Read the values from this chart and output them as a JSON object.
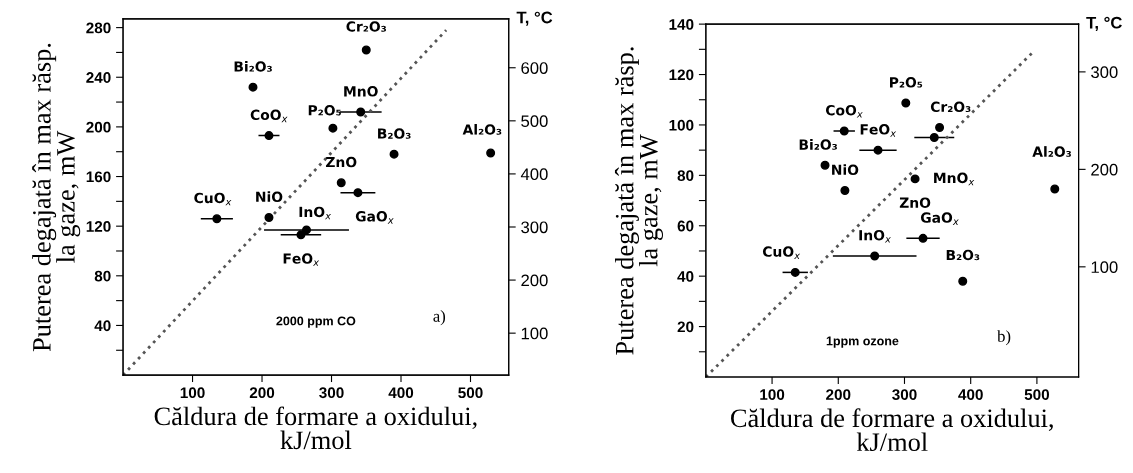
{
  "chart_data": [
    {
      "type": "scatter",
      "xlabel": "Căldura de formare a oxidului,\nkJ/mol",
      "ylabel": "Puterea degajată în max răsp.\nla gaze, mW",
      "y2label": "T, °C",
      "xlim": [
        0,
        555
      ],
      "xticks": [
        100,
        200,
        300,
        400,
        500
      ],
      "ylim": [
        0,
        287
      ],
      "yticks": [
        {
          "value": 20,
          "label": null
        },
        40,
        {
          "value": 60,
          "label": null
        },
        80,
        {
          "value": 100,
          "label": null
        },
        120,
        {
          "value": 140,
          "label": null
        },
        160,
        {
          "value": 180,
          "label": null
        },
        200,
        {
          "value": 220,
          "label": null
        },
        240,
        {
          "value": 260,
          "label": null
        },
        280
      ],
      "y2lim": [
        21,
        692
      ],
      "y2ticks": [
        100,
        200,
        300,
        400,
        500,
        600
      ],
      "grid": false,
      "legend": false,
      "series": [
        {
          "marker": "circle",
          "color": "#000000",
          "x": [
            187,
            210,
            135,
            210,
            350,
            342,
            302,
            390,
            529,
            314,
            338,
            264,
            256
          ],
          "values": [
            232,
            193,
            126,
            127,
            262,
            212,
            199,
            178,
            179,
            155,
            147,
            117,
            113
          ],
          "xerrors": [
            null,
            14,
            22,
            null,
            null,
            29,
            null,
            null,
            null,
            null,
            24,
            60,
            28
          ]
        },
        {
          "type": "line",
          "color": "#555555",
          "line_style": "dotted",
          "x": [
            0,
            465
          ],
          "values": [
            0,
            278
          ]
        }
      ],
      "annotations": [
        {
          "text": "Bi₂O₃",
          "x": 187,
          "y": 232
        },
        {
          "text": "CoO$_{x}$",
          "x": 210,
          "y": 193
        },
        {
          "text": "CuO$_{x}$",
          "x": 135,
          "y": 126
        },
        {
          "text": "NiO",
          "x": 210,
          "y": 127
        },
        {
          "text": "Cr₂O₃",
          "x": 350,
          "y": 262
        },
        {
          "text": "MnO",
          "x": 342,
          "y": 212
        },
        {
          "text": "P₂O₅",
          "x": 302,
          "y": 199
        },
        {
          "text": "B₂O₃",
          "x": 390,
          "y": 178
        },
        {
          "text": "Al₂O₃",
          "x": 529,
          "y": 179
        },
        {
          "text": "ZnO",
          "x": 314,
          "y": 155
        },
        {
          "text": "GaO$_{x}$",
          "x": 338,
          "y": 147
        },
        {
          "text": "InO$_{x}$",
          "x": 264,
          "y": 117
        },
        {
          "text": "FeO$_{x}$",
          "x": 256,
          "y": 113
        },
        "2000 ppm CO",
        "a)"
      ]
    },
    {
      "type": "scatter",
      "xlabel": "Căldura de formare a oxidului,\nkJ/mol",
      "ylabel": "Puterea degajată în max răsp.\nla gaze, mW",
      "y2label": "T, °C",
      "xlim": [
        0,
        563
      ],
      "xticks": [
        100,
        200,
        300,
        400,
        500
      ],
      "ylim": [
        0,
        140
      ],
      "yticks": [
        {
          "value": 10,
          "label": null
        },
        20,
        {
          "value": 30,
          "label": null
        },
        40,
        {
          "value": 50,
          "label": null
        },
        60,
        {
          "value": 70,
          "label": null
        },
        80,
        {
          "value": 90,
          "label": null
        },
        100,
        {
          "value": 110,
          "label": null
        },
        120,
        {
          "value": 130,
          "label": null
        },
        140
      ],
      "y2lim": [
        -13,
        349
      ],
      "y2ticks": [
        100,
        200,
        300
      ],
      "grid": false,
      "legend": false,
      "series": [
        {
          "marker": "circle",
          "color": "#000000",
          "x": [
            209,
            180,
            210,
            135,
            302,
            353,
            345,
            260,
            316,
            527,
            328,
            255,
            388
          ],
          "values": [
            97.6,
            84,
            74,
            41.5,
            108.7,
            99,
            95,
            90,
            78.6,
            74.6,
            55,
            48,
            38
          ],
          "xerrors": [
            15,
            null,
            null,
            18,
            null,
            null,
            29,
            27,
            null,
            null,
            24,
            62,
            null
          ]
        },
        {
          "type": "line",
          "color": "#555555",
          "line_style": "dotted",
          "x": [
            0,
            496
          ],
          "values": [
            0,
            129.4
          ]
        }
      ],
      "annotations": [
        {
          "text": "CoO$_{x}$",
          "x": 209,
          "y": 97.6
        },
        {
          "text": "Bi₂O₃",
          "x": 180,
          "y": 84
        },
        {
          "text": "NiO",
          "x": 210,
          "y": 74
        },
        {
          "text": "CuO$_{x}$",
          "x": 135,
          "y": 41.5
        },
        {
          "text": "P₂O₅",
          "x": 302,
          "y": 108.7
        },
        {
          "text": "Cr₂O₃",
          "x": 353,
          "y": 99
        },
        {
          "text": "MnO$_{x}$",
          "x": 345,
          "y": 95
        },
        {
          "text": "FeO$_{x}$",
          "x": 260,
          "y": 90
        },
        {
          "text": "ZnO",
          "x": 316,
          "y": 78.6
        },
        {
          "text": "Al₂O₃",
          "x": 527,
          "y": 74.6
        },
        {
          "text": "GaO$_{x}$",
          "x": 328,
          "y": 55
        },
        {
          "text": "InO$_{x}$",
          "x": 255,
          "y": 48
        },
        {
          "text": "B₂O₃",
          "x": 388,
          "y": 38
        },
        "1ppm ozone",
        "b)"
      ]
    }
  ]
}
